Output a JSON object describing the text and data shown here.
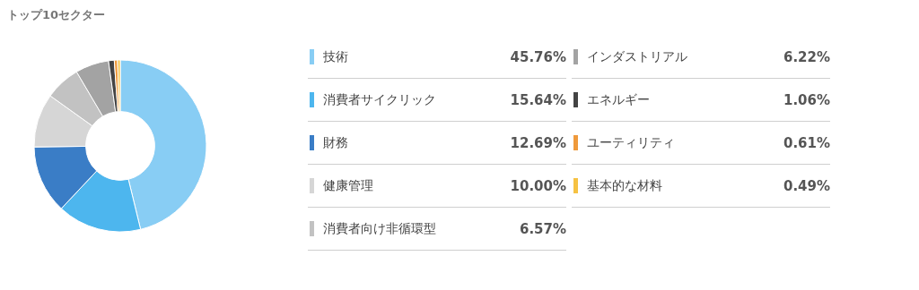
{
  "chart_data": {
    "type": "donut",
    "title": "トップ10セクター",
    "categories": [
      "技術",
      "消費者サイクリック",
      "財務",
      "健康管理",
      "消費者向け非循環型",
      "インダストリアル",
      "エネルギー",
      "ユーティリティ",
      "基本的な材料"
    ],
    "values": [
      45.76,
      15.64,
      12.69,
      10.0,
      6.57,
      6.22,
      1.06,
      0.61,
      0.49
    ],
    "value_labels": [
      "45.76%",
      "15.64%",
      "12.69%",
      "10.00%",
      "6.57%",
      "6.22%",
      "1.06%",
      "0.61%",
      "0.49%"
    ],
    "colors": [
      "#88cdf4",
      "#4db6ee",
      "#3a7dc6",
      "#d6d6d6",
      "#c2c2c2",
      "#a3a3a3",
      "#444444",
      "#ef9a3c",
      "#f6c243"
    ],
    "legend": "right"
  }
}
